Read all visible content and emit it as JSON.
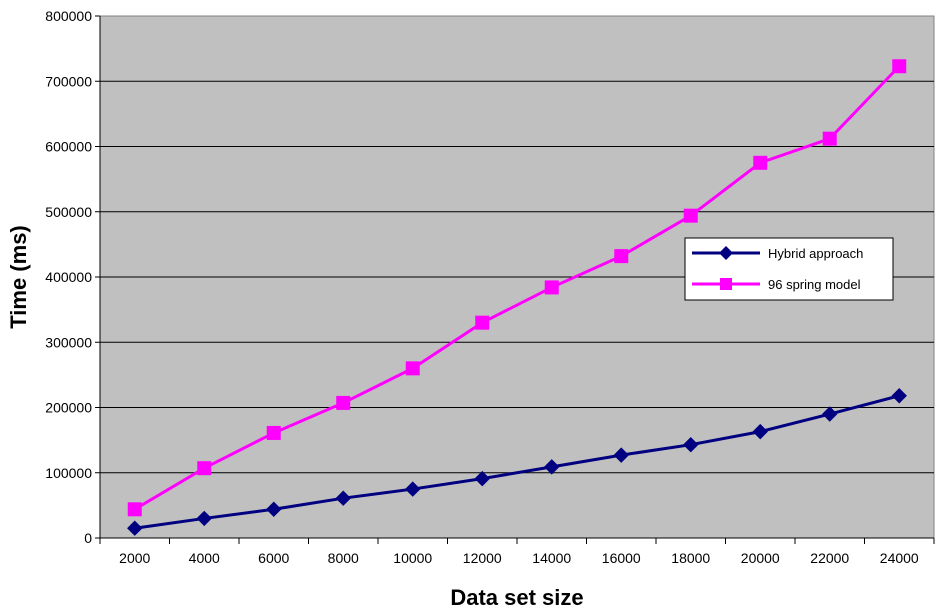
{
  "chart_data": {
    "type": "line",
    "title": "",
    "xlabel": "Data set size",
    "ylabel": "Time (ms)",
    "x": [
      2000,
      4000,
      6000,
      8000,
      10000,
      12000,
      14000,
      16000,
      18000,
      20000,
      22000,
      24000
    ],
    "x_tick_labels": [
      "2000",
      "4000",
      "6000",
      "8000",
      "10000",
      "12000",
      "14000",
      "16000",
      "18000",
      "20000",
      "22000",
      "24000"
    ],
    "ylim": [
      0,
      800000
    ],
    "y_ticks": [
      0,
      100000,
      200000,
      300000,
      400000,
      500000,
      600000,
      700000,
      800000
    ],
    "y_tick_labels": [
      "0",
      "100000",
      "200000",
      "300000",
      "400000",
      "500000",
      "600000",
      "700000",
      "800000"
    ],
    "grid": "horizontal",
    "legend_position": "right",
    "plot_background": "#c0c0c0",
    "series": [
      {
        "name": "Hybrid approach",
        "color": "#000080",
        "marker": "diamond",
        "values": [
          15000,
          30000,
          44000,
          61000,
          75000,
          91000,
          109000,
          127000,
          143000,
          163000,
          190000,
          218000
        ]
      },
      {
        "name": "96 spring model",
        "color": "#ff00ff",
        "marker": "square",
        "values": [
          44000,
          107000,
          161000,
          207000,
          260000,
          330000,
          384000,
          432000,
          494000,
          575000,
          612000,
          723000
        ]
      }
    ]
  }
}
